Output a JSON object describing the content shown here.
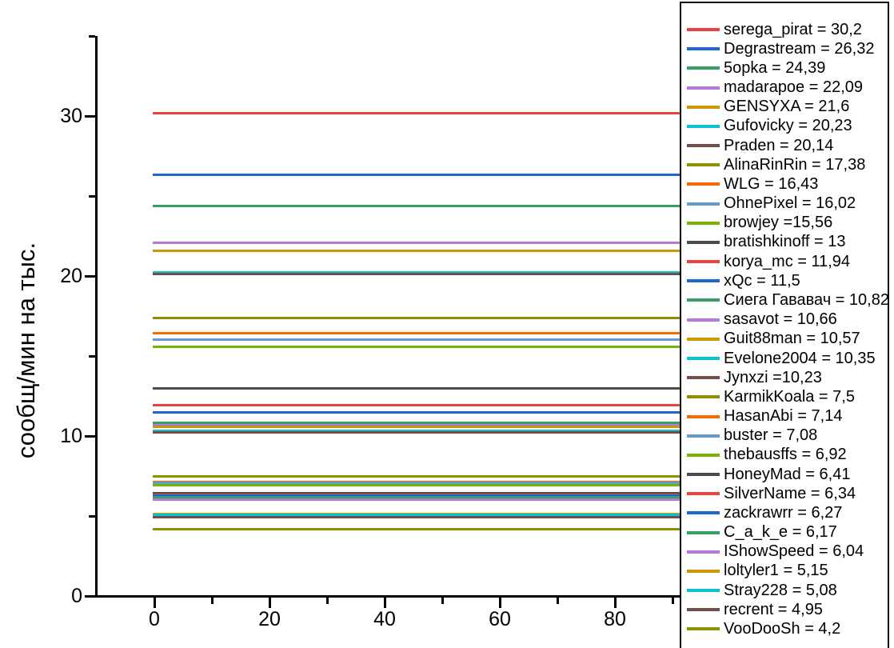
{
  "figure": {
    "background": "#ffffff",
    "axis_color": "#000000"
  },
  "chart_data": {
    "type": "line",
    "title": "",
    "xlabel": "",
    "ylabel": "сообщ/мин на тыс.",
    "xlim": [
      -10,
      91.5
    ],
    "ylim": [
      0,
      35
    ],
    "grid": false,
    "legend_position": "right-overlay",
    "line_x_span": [
      0,
      91.5
    ],
    "x_ticks": {
      "major": [
        {
          "value": 0,
          "label": "0"
        },
        {
          "value": 20,
          "label": "20"
        },
        {
          "value": 40,
          "label": "40"
        },
        {
          "value": 60,
          "label": "60"
        },
        {
          "value": 80,
          "label": "80"
        }
      ],
      "minor": [
        10,
        30,
        50,
        70,
        90
      ]
    },
    "y_ticks": {
      "major": [
        {
          "value": 0,
          "label": "0"
        },
        {
          "value": 10,
          "label": "10"
        },
        {
          "value": 20,
          "label": "20"
        },
        {
          "value": 30,
          "label": "30"
        }
      ],
      "minor": [
        5,
        15,
        25,
        35
      ]
    },
    "series": [
      {
        "name": "serega_pirat",
        "value": 30.2,
        "label": "serega_pirat = 30,2",
        "color": "#ed4340"
      },
      {
        "name": "Degrastream",
        "value": 26.32,
        "label": "Degrastream = 26,32",
        "color": "#1c68d0"
      },
      {
        "name": "5opka",
        "value": 24.39,
        "label": "5opka = 24,39",
        "color": "#35a264"
      },
      {
        "name": "madarapoe",
        "value": 22.09,
        "label": "madarapoe = 22,09",
        "color": "#b57ad9"
      },
      {
        "name": "GENSYXA",
        "value": 21.6,
        "label": "GENSYXA = 21,6",
        "color": "#cc9a00"
      },
      {
        "name": "Gufovicky",
        "value": 20.23,
        "label": "Gufovicky = 20,23",
        "color": "#0cc3cb"
      },
      {
        "name": "Praden",
        "value": 20.14,
        "label": "Praden = 20,14",
        "color": "#744d4d"
      },
      {
        "name": "AlinaRinRin",
        "value": 17.38,
        "label": "AlinaRinRin = 17,38",
        "color": "#8f9100"
      },
      {
        "name": "WLG",
        "value": 16.43,
        "label": "WLG = 16,43",
        "color": "#f56900"
      },
      {
        "name": "OhnePixel",
        "value": 16.02,
        "label": "OhnePixel = 16,02",
        "color": "#6699cc"
      },
      {
        "name": "browjey",
        "value": 15.56,
        "label": "browjey =15,56",
        "color": "#79b500"
      },
      {
        "name": "bratishkinoff",
        "value": 13,
        "label": "bratishkinoff = 13",
        "color": "#4d4d4d"
      },
      {
        "name": "korya_mc",
        "value": 11.94,
        "label": "korya_mc = 11,94",
        "color": "#ed4340"
      },
      {
        "name": "xQc",
        "value": 11.5,
        "label": "xQc = 11,5",
        "color": "#1c68d0"
      },
      {
        "name": "Сиега Гававач",
        "value": 10.82,
        "label": "Сиега Гававач = 10,82",
        "color": "#35a264"
      },
      {
        "name": "sasavot",
        "value": 10.66,
        "label": "sasavot = 10,66",
        "color": "#b57ad9"
      },
      {
        "name": "Guit88man",
        "value": 10.57,
        "label": "Guit88man = 10,57",
        "color": "#cc9a00"
      },
      {
        "name": "Evelone2004",
        "value": 10.35,
        "label": "Evelone2004 = 10,35",
        "color": "#0cc3cb"
      },
      {
        "name": "Jynxzi",
        "value": 10.23,
        "label": "Jynxzi =10,23",
        "color": "#744d4d"
      },
      {
        "name": "KarmikKoala",
        "value": 7.5,
        "label": "KarmikKoala = 7,5",
        "color": "#8f9100"
      },
      {
        "name": "HasanAbi",
        "value": 7.14,
        "label": "HasanAbi = 7,14",
        "color": "#f56900"
      },
      {
        "name": "buster",
        "value": 7.08,
        "label": "buster = 7,08",
        "color": "#6699cc"
      },
      {
        "name": "thebausffs",
        "value": 6.92,
        "label": "thebausffs = 6,92",
        "color": "#79b500"
      },
      {
        "name": "HoneyMad",
        "value": 6.41,
        "label": "HoneyMad = 6,41",
        "color": "#4d4d4d"
      },
      {
        "name": "SilverName",
        "value": 6.34,
        "label": "SilverName = 6,34",
        "color": "#ed4340"
      },
      {
        "name": "zackrawrr",
        "value": 6.27,
        "label": "zackrawrr = 6,27",
        "color": "#1c68d0"
      },
      {
        "name": "C_a_k_e",
        "value": 6.17,
        "label": "C_a_k_e = 6,17",
        "color": "#35a264"
      },
      {
        "name": "IShowSpeed",
        "value": 6.04,
        "label": "IShowSpeed = 6,04",
        "color": "#b57ad9"
      },
      {
        "name": "loltyler1",
        "value": 5.15,
        "label": "loltyler1 = 5,15",
        "color": "#cc9a00"
      },
      {
        "name": "Stray228",
        "value": 5.08,
        "label": "Stray228 = 5,08",
        "color": "#0cc3cb"
      },
      {
        "name": "recrent",
        "value": 4.95,
        "label": "recrent = 4,95",
        "color": "#744d4d"
      },
      {
        "name": "VooDooSh",
        "value": 4.2,
        "label": "VooDooSh = 4,2",
        "color": "#8f9100"
      }
    ]
  }
}
